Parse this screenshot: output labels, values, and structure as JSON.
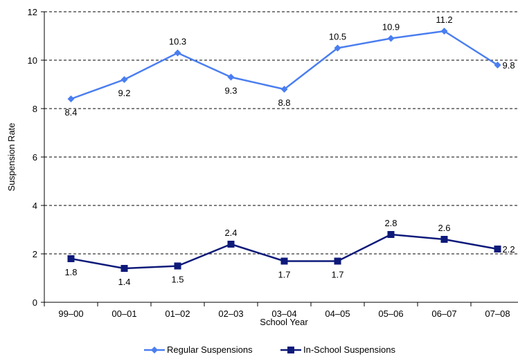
{
  "chart_data": {
    "type": "line",
    "categories": [
      "99–00",
      "00–01",
      "01–02",
      "02–03",
      "03–04",
      "04–05",
      "05–06",
      "06–07",
      "07–08"
    ],
    "series": [
      {
        "name": "Regular Suspensions",
        "values": [
          8.4,
          9.2,
          10.3,
          9.3,
          8.8,
          10.5,
          10.9,
          11.2,
          9.8
        ],
        "labels": [
          "8.4",
          "9.2",
          "10.3",
          "9.3",
          "8.8",
          "10.5",
          "10.9",
          "11.2",
          "9.8"
        ],
        "color": "#4a7ef0",
        "marker": "diamond"
      },
      {
        "name": "In-School Suspensions",
        "values": [
          1.8,
          1.4,
          1.5,
          2.4,
          1.7,
          1.7,
          2.8,
          2.6,
          2.2
        ],
        "labels": [
          "1.8",
          "1.4",
          "1.5",
          "2.4",
          "1.7",
          "1.7",
          "2.8",
          "2.6",
          "2.2"
        ],
        "color": "#0e1a7a",
        "marker": "square"
      }
    ],
    "xlabel": "School Year",
    "ylabel": "Suspension Rate",
    "ylim": [
      0,
      12
    ],
    "yticks": [
      "0",
      "2",
      "4",
      "6",
      "8",
      "10",
      "12"
    ],
    "grid": "horizontal-dashed",
    "legend": "bottom"
  }
}
